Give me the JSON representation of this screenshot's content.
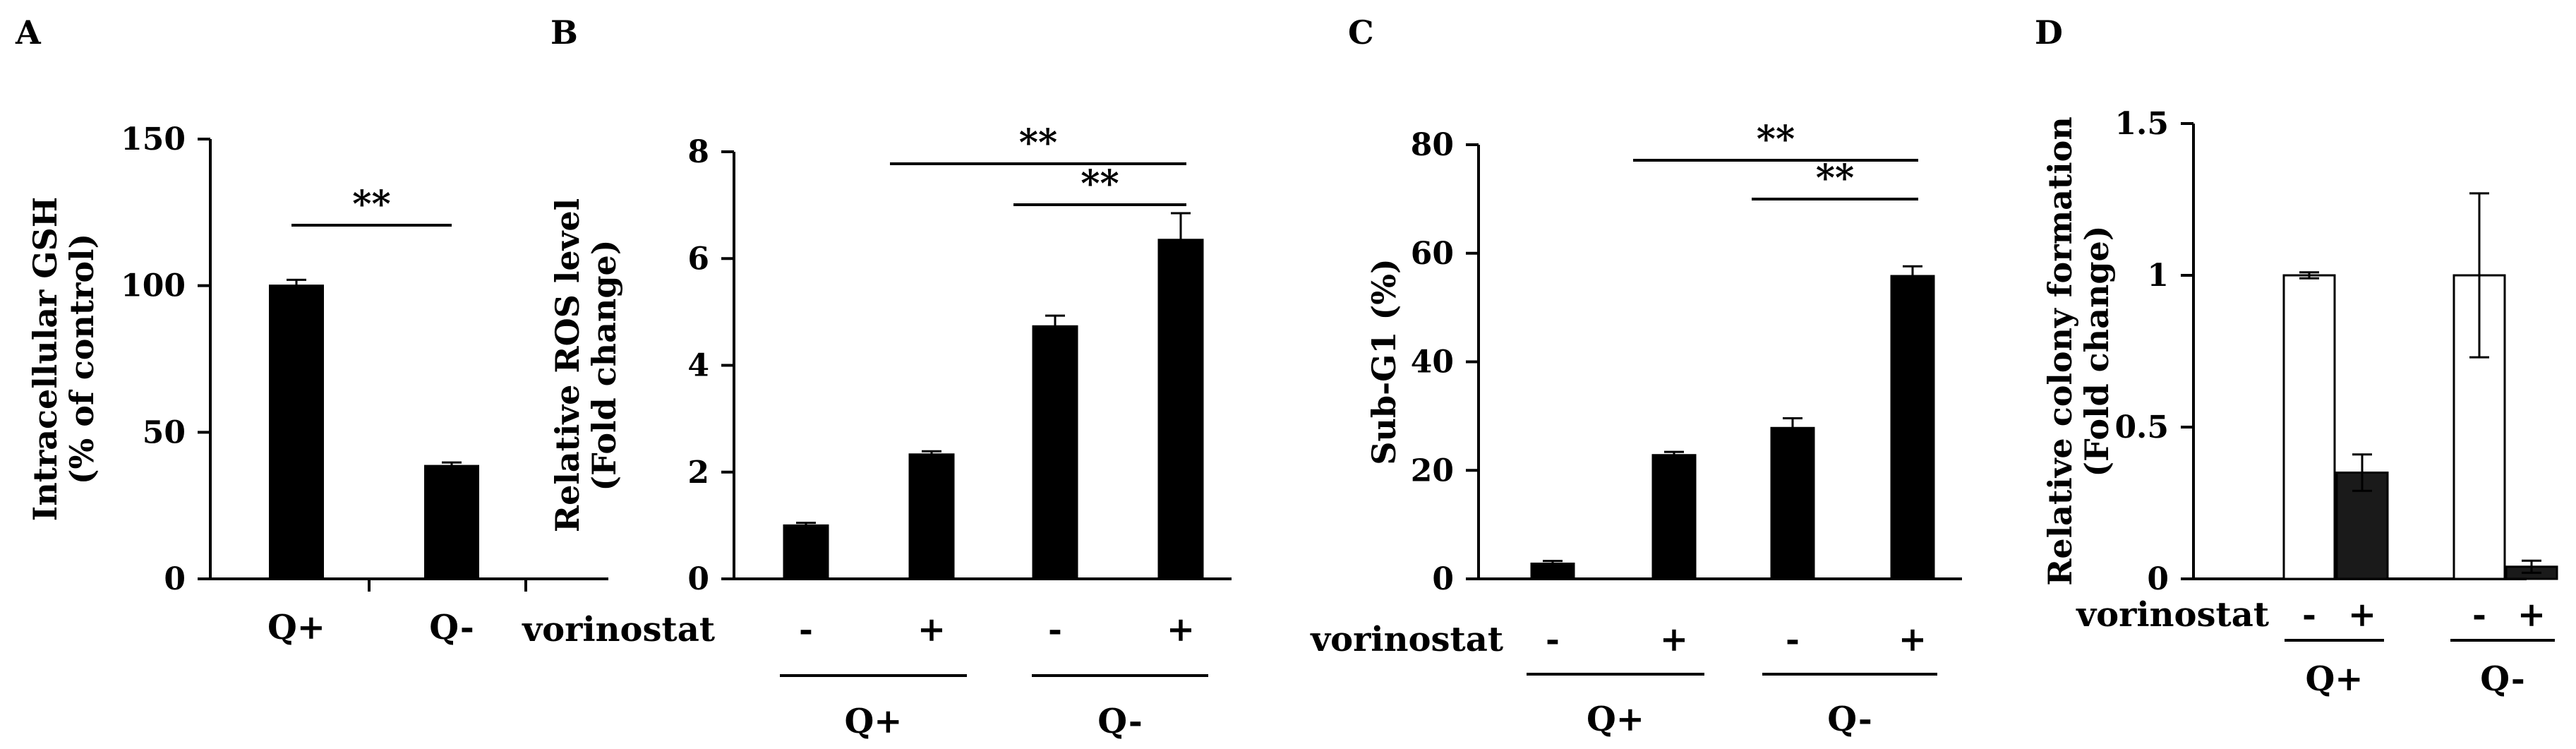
{
  "chart_data": [
    {
      "panel": "A",
      "type": "bar",
      "ylabel_lines": [
        "Intracellular GSH",
        "(% of control)"
      ],
      "ylim": [
        0,
        150
      ],
      "yticks": [
        "0",
        "50",
        "100",
        "150"
      ],
      "categories": [
        "Q+",
        "Q-"
      ],
      "values": [
        100,
        38.5
      ],
      "errors": [
        2,
        1.2
      ],
      "significance": [
        {
          "from": 0,
          "to": 1,
          "label": "**"
        }
      ]
    },
    {
      "panel": "B",
      "type": "bar",
      "ylabel_lines": [
        "Relative ROS level",
        "(Fold change)"
      ],
      "ylim": [
        0,
        8
      ],
      "yticks": [
        "0",
        "2",
        "4",
        "6",
        "8"
      ],
      "row_label": "vorinostat",
      "treatment": [
        "-",
        "+",
        "-",
        "+"
      ],
      "groups": [
        "Q+",
        "Q-"
      ],
      "values": [
        1.0,
        2.33,
        4.73,
        6.35
      ],
      "errors": [
        0.05,
        0.06,
        0.2,
        0.5
      ],
      "significance": [
        {
          "from": 1,
          "to": 3,
          "label": "**"
        },
        {
          "from": 2,
          "to": 3,
          "label": "**"
        }
      ]
    },
    {
      "panel": "C",
      "type": "bar",
      "ylabel_lines": [
        "Sub-G1 (%)"
      ],
      "ylim": [
        0,
        80
      ],
      "yticks": [
        "0",
        "20",
        "40",
        "60",
        "80"
      ],
      "row_label": "vorinostat",
      "treatment": [
        "-",
        "+",
        "-",
        "+"
      ],
      "groups": [
        "Q+",
        "Q-"
      ],
      "values": [
        2.8,
        22.8,
        27.8,
        55.8
      ],
      "errors": [
        0.5,
        0.6,
        1.8,
        1.8
      ],
      "significance": [
        {
          "from": 1,
          "to": 3,
          "label": "**"
        },
        {
          "from": 2,
          "to": 3,
          "label": "**"
        }
      ]
    },
    {
      "panel": "D",
      "type": "bar",
      "ylabel_lines": [
        "Relative colony formation",
        "(Fold change)"
      ],
      "ylim": [
        0,
        1.5
      ],
      "yticks": [
        "0",
        "0.5",
        "1",
        "1.5"
      ],
      "row_label": "vorinostat",
      "treatment": [
        "-",
        "+",
        "-",
        "+"
      ],
      "groups": [
        "Q+",
        "Q-"
      ],
      "values": [
        1.0,
        0.35,
        1.0,
        0.04
      ],
      "errors": [
        0.01,
        0.06,
        0.27,
        0.02
      ],
      "bar_fills": [
        "#ffffff",
        "#1a1a1a",
        "#ffffff",
        "#1a1a1a"
      ]
    }
  ],
  "colors": {
    "bar": "#000000",
    "axis": "#000000"
  }
}
